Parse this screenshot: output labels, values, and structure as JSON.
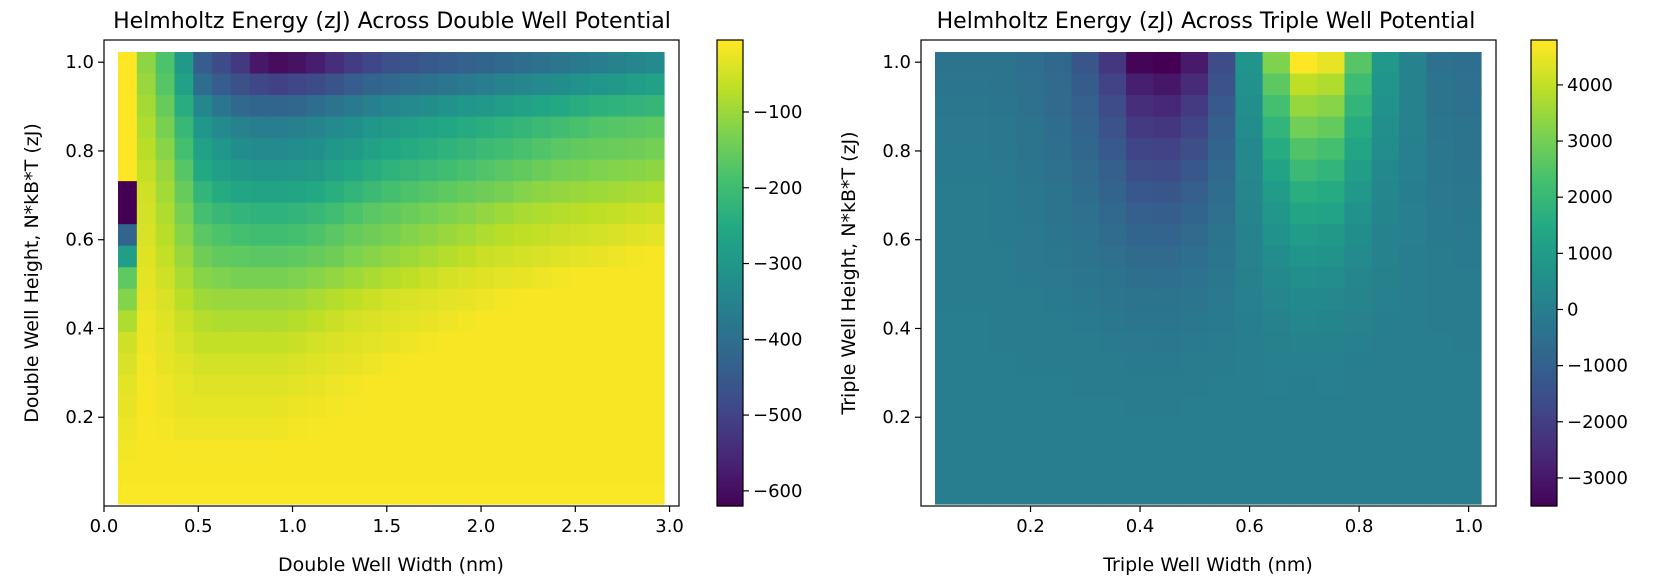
{
  "chart_data": [
    {
      "type": "heatmap",
      "title": "Helmholtz Energy (zJ) Across Double Well Potential",
      "xlabel": "Double Well Width (nm)",
      "ylabel": "Double Well Height, N*kB*T (zJ)",
      "xlim": [
        0.0,
        3.05
      ],
      "ylim": [
        0.0,
        1.05
      ],
      "grid": false,
      "colormap": "viridis",
      "x_ticks": [
        "0.0",
        "0.5",
        "1.0",
        "1.5",
        "2.0",
        "2.5",
        "3.0"
      ],
      "y_ticks": [
        "0.2",
        "0.4",
        "0.6",
        "0.8",
        "1.0"
      ],
      "colorbar": {
        "vmin": -620,
        "vmax": -5,
        "ticks": [
          "−100",
          "−200",
          "−300",
          "−400",
          "−500",
          "−600"
        ]
      },
      "data_note": "Values estimated from colour; grid rows ordered from y = 1.0 (top) down to y = 0.0.",
      "x": [
        0.05,
        0.155,
        0.26,
        0.365,
        0.47,
        0.575,
        0.68,
        0.785,
        0.89,
        0.995,
        1.1,
        1.205,
        1.31,
        1.415,
        1.52,
        1.625,
        1.73,
        1.835,
        1.94,
        2.045,
        2.15,
        2.255,
        2.36,
        2.465,
        2.57,
        2.675,
        2.78,
        2.885,
        2.99
      ],
      "y": [
        1.0,
        0.95,
        0.9,
        0.85,
        0.8,
        0.75,
        0.7,
        0.65,
        0.6,
        0.55,
        0.5,
        0.45,
        0.4,
        0.35,
        0.3,
        0.25,
        0.2,
        0.15,
        0.1,
        0.05,
        0.0
      ],
      "z": [
        [
          -5,
          -110,
          -180,
          -290,
          -440,
          -480,
          -520,
          -580,
          -600,
          -590,
          -570,
          -540,
          -510,
          -490,
          -470,
          -460,
          -450,
          -440,
          -430,
          -420,
          -410,
          -400,
          -390,
          -380,
          -370,
          -360,
          -350,
          -340,
          -330
        ],
        [
          -5,
          -100,
          -170,
          -270,
          -400,
          -440,
          -470,
          -490,
          -500,
          -490,
          -480,
          -460,
          -440,
          -420,
          -410,
          -400,
          -390,
          -380,
          -370,
          -360,
          -350,
          -340,
          -330,
          -320,
          -310,
          -300,
          -290,
          -280,
          -270
        ],
        [
          -5,
          -90,
          -150,
          -240,
          -340,
          -380,
          -410,
          -420,
          -420,
          -415,
          -400,
          -385,
          -370,
          -355,
          -340,
          -330,
          -320,
          -310,
          -300,
          -290,
          -280,
          -270,
          -260,
          -250,
          -240,
          -230,
          -225,
          -220,
          -215
        ],
        [
          -5,
          -80,
          -130,
          -210,
          -300,
          -330,
          -350,
          -360,
          -360,
          -355,
          -345,
          -330,
          -315,
          -300,
          -285,
          -275,
          -265,
          -255,
          -245,
          -235,
          -225,
          -215,
          -205,
          -195,
          -185,
          -175,
          -170,
          -165,
          -160
        ],
        [
          -5,
          -70,
          -115,
          -190,
          -270,
          -300,
          -320,
          -330,
          -330,
          -325,
          -315,
          -300,
          -285,
          -270,
          -255,
          -245,
          -235,
          -225,
          -215,
          -205,
          -195,
          -185,
          -175,
          -165,
          -155,
          -150,
          -145,
          -140,
          -135
        ],
        [
          -5,
          -60,
          -100,
          -170,
          -250,
          -275,
          -290,
          -300,
          -300,
          -295,
          -285,
          -270,
          -255,
          -240,
          -225,
          -215,
          -205,
          -195,
          -185,
          -175,
          -165,
          -155,
          -145,
          -135,
          -130,
          -125,
          -120,
          -115,
          -110
        ],
        [
          -620,
          -50,
          -90,
          -150,
          -220,
          -245,
          -260,
          -265,
          -265,
          -260,
          -250,
          -235,
          -220,
          -205,
          -190,
          -180,
          -170,
          -160,
          -150,
          -140,
          -130,
          -120,
          -110,
          -105,
          -100,
          -95,
          -90,
          -85,
          -80
        ],
        [
          -620,
          -45,
          -80,
          -130,
          -190,
          -210,
          -220,
          -225,
          -225,
          -220,
          -210,
          -195,
          -180,
          -165,
          -155,
          -145,
          -135,
          -125,
          -115,
          -105,
          -95,
          -85,
          -80,
          -75,
          -70,
          -65,
          -60,
          -55,
          -50
        ],
        [
          -420,
          -40,
          -70,
          -115,
          -165,
          -180,
          -190,
          -195,
          -195,
          -190,
          -180,
          -165,
          -150,
          -140,
          -130,
          -120,
          -110,
          -100,
          -90,
          -80,
          -70,
          -65,
          -60,
          -55,
          -50,
          -45,
          -40,
          -35,
          -30
        ],
        [
          -280,
          -35,
          -60,
          -100,
          -140,
          -155,
          -160,
          -165,
          -165,
          -160,
          -150,
          -140,
          -125,
          -115,
          -105,
          -95,
          -85,
          -75,
          -65,
          -55,
          -50,
          -45,
          -40,
          -35,
          -30,
          -25,
          -20,
          -15,
          -10
        ],
        [
          -160,
          -30,
          -50,
          -85,
          -115,
          -125,
          -130,
          -130,
          -130,
          -125,
          -115,
          -105,
          -95,
          -85,
          -75,
          -65,
          -55,
          -45,
          -40,
          -35,
          -30,
          -25,
          -20,
          -15,
          -10,
          -10,
          -10,
          -10,
          -10
        ],
        [
          -120,
          -25,
          -40,
          -70,
          -95,
          -100,
          -100,
          -100,
          -100,
          -95,
          -85,
          -75,
          -65,
          -55,
          -45,
          -40,
          -35,
          -30,
          -25,
          -20,
          -15,
          -10,
          -10,
          -10,
          -10,
          -10,
          -10,
          -10,
          -10
        ],
        [
          -80,
          -20,
          -35,
          -55,
          -75,
          -80,
          -80,
          -80,
          -80,
          -75,
          -65,
          -55,
          -45,
          -40,
          -35,
          -30,
          -25,
          -20,
          -15,
          -10,
          -10,
          -10,
          -10,
          -10,
          -10,
          -10,
          -10,
          -10,
          -10
        ],
        [
          -50,
          -18,
          -30,
          -45,
          -60,
          -60,
          -60,
          -60,
          -60,
          -55,
          -45,
          -40,
          -35,
          -30,
          -25,
          -20,
          -15,
          -10,
          -10,
          -10,
          -10,
          -10,
          -10,
          -10,
          -10,
          -10,
          -10,
          -10,
          -10
        ],
        [
          -40,
          -15,
          -25,
          -35,
          -45,
          -45,
          -45,
          -45,
          -45,
          -40,
          -35,
          -30,
          -25,
          -20,
          -15,
          -10,
          -10,
          -10,
          -10,
          -10,
          -10,
          -10,
          -10,
          -10,
          -10,
          -10,
          -10,
          -10,
          -10
        ],
        [
          -30,
          -12,
          -20,
          -28,
          -35,
          -35,
          -35,
          -35,
          -35,
          -30,
          -25,
          -20,
          -15,
          -10,
          -10,
          -10,
          -10,
          -10,
          -10,
          -10,
          -10,
          -10,
          -10,
          -10,
          -10,
          -10,
          -10,
          -10,
          -10
        ],
        [
          -25,
          -10,
          -18,
          -25,
          -28,
          -28,
          -28,
          -28,
          -25,
          -22,
          -18,
          -15,
          -12,
          -10,
          -10,
          -10,
          -10,
          -10,
          -10,
          -10,
          -10,
          -10,
          -10,
          -10,
          -10,
          -10,
          -10,
          -10,
          -10
        ],
        [
          -20,
          -10,
          -15,
          -20,
          -20,
          -20,
          -20,
          -20,
          -18,
          -15,
          -12,
          -10,
          -10,
          -10,
          -10,
          -10,
          -10,
          -10,
          -10,
          -10,
          -10,
          -10,
          -10,
          -10,
          -10,
          -10,
          -10,
          -10,
          -10
        ],
        [
          -15,
          -10,
          -10,
          -12,
          -12,
          -12,
          -12,
          -12,
          -10,
          -10,
          -10,
          -10,
          -10,
          -10,
          -10,
          -10,
          -10,
          -10,
          -10,
          -10,
          -10,
          -10,
          -10,
          -10,
          -10,
          -10,
          -10,
          -10,
          -10
        ],
        [
          -10,
          -10,
          -10,
          -10,
          -10,
          -10,
          -10,
          -10,
          -10,
          -10,
          -10,
          -10,
          -10,
          -10,
          -10,
          -10,
          -10,
          -10,
          -10,
          -10,
          -10,
          -10,
          -10,
          -10,
          -10,
          -10,
          -10,
          -10,
          -10
        ],
        [
          -8,
          -8,
          -8,
          -8,
          -8,
          -8,
          -8,
          -8,
          -8,
          -8,
          -8,
          -8,
          -8,
          -8,
          -8,
          -8,
          -8,
          -8,
          -8,
          -8,
          -8,
          -8,
          -8,
          -8,
          -8,
          -8,
          -8,
          -8,
          -8
        ]
      ]
    },
    {
      "type": "heatmap",
      "title": "Helmholtz Energy (zJ) Across Triple Well Potential",
      "xlabel": "Triple Well Width (nm)",
      "ylabel": "Triple Well Height, N*kB*T (zJ)",
      "xlim": [
        0.0,
        1.05
      ],
      "ylim": [
        0.0,
        1.05
      ],
      "grid": false,
      "colormap": "viridis",
      "x_ticks": [
        "0.2",
        "0.4",
        "0.6",
        "0.8",
        "1.0"
      ],
      "y_ticks": [
        "0.2",
        "0.4",
        "0.6",
        "0.8",
        "1.0"
      ],
      "colorbar": {
        "vmin": -3500,
        "vmax": 4800,
        "ticks": [
          "4000",
          "3000",
          "2000",
          "1000",
          "0",
          "−1000",
          "−2000",
          "−3000"
        ]
      },
      "data_note": "Values estimated from colour; grid rows ordered from y = 1.0 (top) down to y = 0.0.",
      "x": [
        0.05,
        0.1,
        0.15,
        0.2,
        0.25,
        0.3,
        0.35,
        0.4,
        0.45,
        0.5,
        0.55,
        0.6,
        0.65,
        0.7,
        0.75,
        0.8,
        0.85,
        0.9,
        0.95,
        1.0
      ],
      "y": [
        1.0,
        0.95,
        0.9,
        0.85,
        0.8,
        0.75,
        0.7,
        0.65,
        0.6,
        0.55,
        0.5,
        0.45,
        0.4,
        0.35,
        0.3,
        0.25,
        0.2,
        0.15,
        0.1,
        0.05,
        0.0
      ],
      "z": [
        [
          -300,
          -300,
          -350,
          -500,
          -700,
          -1300,
          -2200,
          -3400,
          -3500,
          -2900,
          -1600,
          800,
          3200,
          4800,
          4500,
          2600,
          900,
          200,
          -400,
          -500
        ],
        [
          -250,
          -250,
          -300,
          -450,
          -650,
          -1100,
          -1900,
          -2800,
          -3000,
          -2500,
          -1400,
          700,
          2700,
          4000,
          3800,
          2200,
          800,
          200,
          -350,
          -450
        ],
        [
          -200,
          -200,
          -250,
          -400,
          -600,
          -950,
          -1600,
          -2400,
          -2600,
          -2100,
          -1200,
          600,
          2300,
          3500,
          3300,
          1900,
          700,
          150,
          -300,
          -400
        ],
        [
          -150,
          -150,
          -200,
          -350,
          -550,
          -850,
          -1400,
          -2100,
          -2200,
          -1800,
          -1000,
          500,
          1900,
          3000,
          2800,
          1600,
          600,
          150,
          -250,
          -350
        ],
        [
          -120,
          -120,
          -180,
          -300,
          -480,
          -750,
          -1200,
          -1800,
          -1900,
          -1500,
          -850,
          400,
          1600,
          2500,
          2300,
          1350,
          500,
          100,
          -200,
          -300
        ],
        [
          -100,
          -100,
          -150,
          -250,
          -420,
          -650,
          -1000,
          -1500,
          -1600,
          -1250,
          -700,
          350,
          1300,
          2100,
          1900,
          1100,
          400,
          80,
          -180,
          -250
        ],
        [
          -90,
          -90,
          -130,
          -220,
          -360,
          -550,
          -850,
          -1250,
          -1300,
          -1000,
          -550,
          300,
          1050,
          1700,
          1550,
          900,
          330,
          60,
          -150,
          -200
        ],
        [
          -80,
          -80,
          -110,
          -190,
          -300,
          -450,
          -700,
          -1000,
          -1050,
          -800,
          -450,
          250,
          850,
          1350,
          1250,
          700,
          260,
          50,
          -120,
          -170
        ],
        [
          -70,
          -70,
          -100,
          -160,
          -250,
          -380,
          -580,
          -820,
          -850,
          -650,
          -360,
          200,
          680,
          1050,
          950,
          550,
          200,
          40,
          -100,
          -140
        ],
        [
          -60,
          -60,
          -90,
          -140,
          -200,
          -300,
          -450,
          -640,
          -660,
          -500,
          -280,
          150,
          520,
          800,
          720,
          420,
          150,
          30,
          -80,
          -110
        ],
        [
          -50,
          -50,
          -70,
          -110,
          -160,
          -240,
          -350,
          -480,
          -500,
          -380,
          -210,
          110,
          380,
          580,
          520,
          300,
          110,
          20,
          -60,
          -90
        ],
        [
          -40,
          -40,
          -60,
          -90,
          -120,
          -180,
          -260,
          -350,
          -360,
          -270,
          -150,
          80,
          270,
          400,
          360,
          210,
          80,
          15,
          -50,
          -70
        ],
        [
          -30,
          -30,
          -45,
          -70,
          -90,
          -130,
          -180,
          -240,
          -250,
          -190,
          -100,
          55,
          180,
          270,
          240,
          140,
          55,
          10,
          -40,
          -55
        ],
        [
          -25,
          -25,
          -35,
          -50,
          -65,
          -90,
          -120,
          -160,
          -165,
          -125,
          -65,
          35,
          115,
          170,
          150,
          90,
          35,
          5,
          -30,
          -40
        ],
        [
          -20,
          -20,
          -25,
          -35,
          -45,
          -60,
          -80,
          -100,
          -100,
          -80,
          -40,
          20,
          70,
          100,
          90,
          55,
          20,
          0,
          -25,
          -30
        ],
        [
          -15,
          -15,
          -20,
          -25,
          -30,
          -40,
          -50,
          -60,
          -60,
          -45,
          -25,
          10,
          40,
          55,
          50,
          30,
          10,
          0,
          -20,
          -25
        ],
        [
          -10,
          -10,
          -15,
          -18,
          -20,
          -25,
          -30,
          -35,
          -35,
          -25,
          -15,
          5,
          20,
          30,
          25,
          15,
          5,
          0,
          -15,
          -20
        ],
        [
          -10,
          -10,
          -10,
          -12,
          -12,
          -15,
          -18,
          -20,
          -20,
          -15,
          -8,
          2,
          10,
          15,
          12,
          8,
          2,
          0,
          -10,
          -15
        ],
        [
          -8,
          -8,
          -8,
          -8,
          -8,
          -10,
          -10,
          -10,
          -10,
          -8,
          -5,
          0,
          5,
          5,
          5,
          3,
          0,
          0,
          -8,
          -10
        ],
        [
          -5,
          -5,
          -5,
          -5,
          -5,
          -5,
          -5,
          -5,
          -5,
          -5,
          -3,
          0,
          2,
          2,
          2,
          0,
          0,
          0,
          -5,
          -5
        ],
        [
          -5,
          -5,
          -5,
          -5,
          -5,
          -5,
          -5,
          -5,
          -5,
          -5,
          -5,
          -5,
          -5,
          -5,
          -5,
          -5,
          -5,
          -5,
          -5,
          -5
        ]
      ]
    }
  ]
}
